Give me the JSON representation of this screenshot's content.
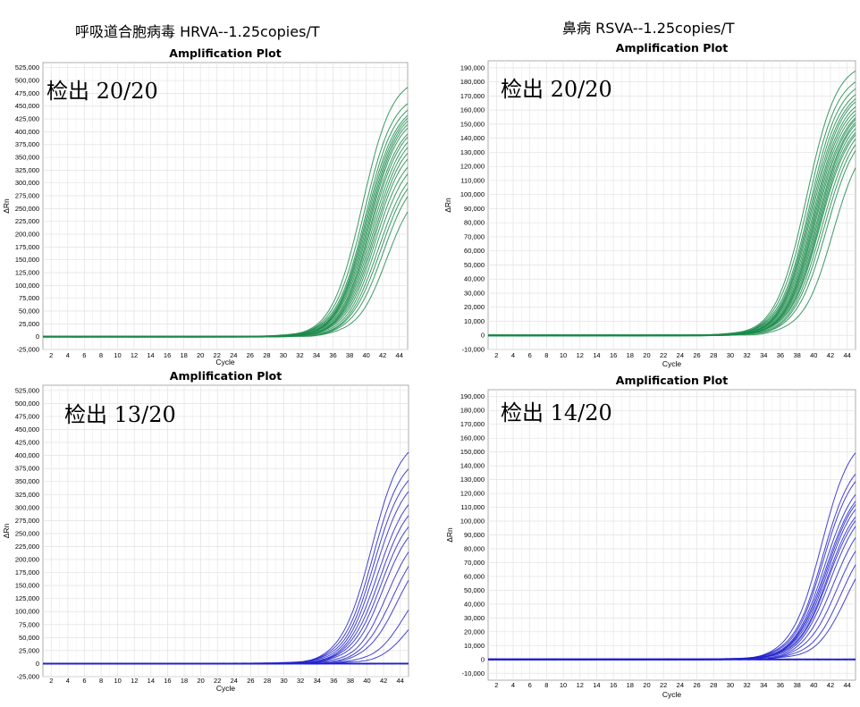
{
  "headings": {
    "left": "呼吸道合胞病毒 HRVA--1.25copies/T",
    "right": "鼻病 RSVA--1.25copies/T"
  },
  "chart_data": [
    {
      "type": "line",
      "title": "Amplification Plot",
      "xlabel": "Cycle",
      "ylabel": "ΔRn",
      "annotation": "检出  20/20",
      "color": "#1a8a4a",
      "xlim": [
        1,
        45
      ],
      "ylim": [
        -25000,
        535000
      ],
      "x_ticks": [
        2,
        4,
        6,
        8,
        10,
        12,
        14,
        16,
        18,
        20,
        22,
        24,
        26,
        28,
        30,
        32,
        34,
        36,
        38,
        40,
        42,
        44
      ],
      "y_ticks": [
        -25000,
        0,
        25000,
        50000,
        75000,
        100000,
        125000,
        150000,
        175000,
        200000,
        225000,
        250000,
        275000,
        300000,
        325000,
        350000,
        375000,
        400000,
        425000,
        450000,
        475000,
        500000,
        525000
      ],
      "y_tick_labels": [
        "-25,000",
        "0",
        "25,000",
        "50,000",
        "75,000",
        "100,000",
        "125,000",
        "150,000",
        "175,000",
        "200,000",
        "225,000",
        "250,000",
        "275,000",
        "300,000",
        "325,000",
        "350,000",
        "375,000",
        "400,000",
        "425,000",
        "450,000",
        "475,000",
        "500,000",
        "525,000"
      ],
      "grid": true,
      "curves": [
        {
          "ct": 38.0,
          "plateau": 510000
        },
        {
          "ct": 38.2,
          "plateau": 480000
        },
        {
          "ct": 38.4,
          "plateau": 470000
        },
        {
          "ct": 38.5,
          "plateau": 460000
        },
        {
          "ct": 38.6,
          "plateau": 455000
        },
        {
          "ct": 38.7,
          "plateau": 450000
        },
        {
          "ct": 38.8,
          "plateau": 445000
        },
        {
          "ct": 38.9,
          "plateau": 440000
        },
        {
          "ct": 39.0,
          "plateau": 430000
        },
        {
          "ct": 39.1,
          "plateau": 425000
        },
        {
          "ct": 39.2,
          "plateau": 415000
        },
        {
          "ct": 39.3,
          "plateau": 405000
        },
        {
          "ct": 39.4,
          "plateau": 395000
        },
        {
          "ct": 39.5,
          "plateau": 385000
        },
        {
          "ct": 39.6,
          "plateau": 370000
        },
        {
          "ct": 39.8,
          "plateau": 360000
        },
        {
          "ct": 40.0,
          "plateau": 345000
        },
        {
          "ct": 40.2,
          "plateau": 335000
        },
        {
          "ct": 40.5,
          "plateau": 325000
        },
        {
          "ct": 41.0,
          "plateau": 305000
        }
      ]
    },
    {
      "type": "line",
      "title": "Amplification Plot",
      "xlabel": "Cycle",
      "ylabel": "ΔRn",
      "annotation": "检出  20/20",
      "color": "#1a8a4a",
      "xlim": [
        1,
        45
      ],
      "ylim": [
        -10000,
        195000
      ],
      "x_ticks": [
        2,
        4,
        6,
        8,
        10,
        12,
        14,
        16,
        18,
        20,
        22,
        24,
        26,
        28,
        30,
        32,
        34,
        36,
        38,
        40,
        42,
        44
      ],
      "y_ticks": [
        -10000,
        0,
        10000,
        20000,
        30000,
        40000,
        50000,
        60000,
        70000,
        80000,
        90000,
        100000,
        110000,
        120000,
        130000,
        140000,
        150000,
        160000,
        170000,
        180000,
        190000
      ],
      "y_tick_labels": [
        "-10,000",
        "0",
        "10,000",
        "20,000",
        "30,000",
        "40,000",
        "50,000",
        "60,000",
        "70,000",
        "80,000",
        "90,000",
        "100,000",
        "110,000",
        "120,000",
        "130,000",
        "140,000",
        "150,000",
        "160,000",
        "170,000",
        "180,000",
        "190,000"
      ],
      "grid": true,
      "curves": [
        {
          "ct": 37.6,
          "plateau": 195000
        },
        {
          "ct": 37.8,
          "plateau": 188000
        },
        {
          "ct": 38.0,
          "plateau": 184000
        },
        {
          "ct": 38.1,
          "plateau": 180000
        },
        {
          "ct": 38.2,
          "plateau": 177000
        },
        {
          "ct": 38.3,
          "plateau": 175000
        },
        {
          "ct": 38.4,
          "plateau": 172000
        },
        {
          "ct": 38.5,
          "plateau": 170000
        },
        {
          "ct": 38.6,
          "plateau": 168000
        },
        {
          "ct": 38.7,
          "plateau": 166000
        },
        {
          "ct": 38.8,
          "plateau": 165000
        },
        {
          "ct": 38.9,
          "plateau": 163000
        },
        {
          "ct": 39.0,
          "plateau": 162000
        },
        {
          "ct": 39.1,
          "plateau": 160000
        },
        {
          "ct": 39.2,
          "plateau": 158000
        },
        {
          "ct": 39.3,
          "plateau": 157000
        },
        {
          "ct": 39.5,
          "plateau": 155000
        },
        {
          "ct": 39.7,
          "plateau": 152000
        },
        {
          "ct": 40.0,
          "plateau": 150000
        },
        {
          "ct": 40.8,
          "plateau": 146000
        }
      ]
    },
    {
      "type": "line",
      "title": "Amplification Plot",
      "xlabel": "Cycle",
      "ylabel": "ΔRn",
      "annotation": "检出  13/20",
      "color": "#2222cc",
      "xlim": [
        1,
        45
      ],
      "ylim": [
        -25000,
        535000
      ],
      "x_ticks": [
        2,
        4,
        6,
        8,
        10,
        12,
        14,
        16,
        18,
        20,
        22,
        24,
        26,
        28,
        30,
        32,
        34,
        36,
        38,
        40,
        42,
        44
      ],
      "y_ticks": [
        -25000,
        0,
        25000,
        50000,
        75000,
        100000,
        125000,
        150000,
        175000,
        200000,
        225000,
        250000,
        275000,
        300000,
        325000,
        350000,
        375000,
        400000,
        425000,
        450000,
        475000,
        500000,
        525000
      ],
      "y_tick_labels": [
        "-25,000",
        "0",
        "25,000",
        "50,000",
        "75,000",
        "100,000",
        "125,000",
        "150,000",
        "175,000",
        "200,000",
        "225,000",
        "250,000",
        "275,000",
        "300,000",
        "325,000",
        "350,000",
        "375,000",
        "400,000",
        "425,000",
        "450,000",
        "475,000",
        "500,000",
        "525,000"
      ],
      "grid": true,
      "curves": [
        {
          "ct": 39.0,
          "plateau": 440000
        },
        {
          "ct": 39.2,
          "plateau": 410000
        },
        {
          "ct": 39.4,
          "plateau": 390000
        },
        {
          "ct": 39.6,
          "plateau": 370000
        },
        {
          "ct": 39.8,
          "plateau": 345000
        },
        {
          "ct": 40.0,
          "plateau": 325000
        },
        {
          "ct": 40.2,
          "plateau": 305000
        },
        {
          "ct": 40.5,
          "plateau": 290000
        },
        {
          "ct": 41.0,
          "plateau": 270000
        },
        {
          "ct": 41.5,
          "plateau": 250000
        },
        {
          "ct": 42.0,
          "plateau": 230000
        },
        {
          "ct": 43.0,
          "plateau": 180000
        },
        {
          "ct": 44.0,
          "plateau": 150000
        },
        {
          "ct": 46.0,
          "plateau": 0
        },
        {
          "ct": 46.0,
          "plateau": 0
        },
        {
          "ct": 46.0,
          "plateau": 0
        },
        {
          "ct": 46.0,
          "plateau": 0
        },
        {
          "ct": 46.0,
          "plateau": 0
        },
        {
          "ct": 46.0,
          "plateau": 0
        },
        {
          "ct": 46.0,
          "plateau": 0
        }
      ]
    },
    {
      "type": "line",
      "title": "Amplification Plot",
      "xlabel": "Cycle",
      "ylabel": "ΔRn",
      "annotation": "检出  14/20",
      "color": "#2222cc",
      "xlim": [
        1,
        45
      ],
      "ylim": [
        -15000,
        195000
      ],
      "x_ticks": [
        2,
        4,
        6,
        8,
        10,
        12,
        14,
        16,
        18,
        20,
        22,
        24,
        26,
        28,
        30,
        32,
        34,
        36,
        38,
        40,
        42,
        44
      ],
      "y_ticks": [
        -10000,
        0,
        10000,
        20000,
        30000,
        40000,
        50000,
        60000,
        70000,
        80000,
        90000,
        100000,
        110000,
        120000,
        130000,
        140000,
        150000,
        160000,
        170000,
        180000,
        190000
      ],
      "y_tick_labels": [
        "-10,000",
        "0",
        "10,000",
        "20,000",
        "30,000",
        "40,000",
        "50,000",
        "60,000",
        "70,000",
        "80,000",
        "90,000",
        "100,000",
        "110,000",
        "120,000",
        "130,000",
        "140,000",
        "150,000",
        "160,000",
        "170,000",
        "180,000",
        "190,000"
      ],
      "grid": true,
      "curves": [
        {
          "ct": 39.4,
          "plateau": 165000
        },
        {
          "ct": 39.6,
          "plateau": 150000
        },
        {
          "ct": 39.7,
          "plateau": 145000
        },
        {
          "ct": 39.8,
          "plateau": 135000
        },
        {
          "ct": 39.9,
          "plateau": 130000
        },
        {
          "ct": 40.0,
          "plateau": 128000
        },
        {
          "ct": 40.1,
          "plateau": 125000
        },
        {
          "ct": 40.2,
          "plateau": 120000
        },
        {
          "ct": 40.3,
          "plateau": 118000
        },
        {
          "ct": 40.5,
          "plateau": 115000
        },
        {
          "ct": 40.8,
          "plateau": 108000
        },
        {
          "ct": 41.2,
          "plateau": 100000
        },
        {
          "ct": 41.8,
          "plateau": 95000
        },
        {
          "ct": 42.5,
          "plateau": 92000
        },
        {
          "ct": 50,
          "plateau": 0
        },
        {
          "ct": 50,
          "plateau": 0
        },
        {
          "ct": 50,
          "plateau": 0
        },
        {
          "ct": 50,
          "plateau": 0
        },
        {
          "ct": 50,
          "plateau": 0
        },
        {
          "ct": 50,
          "plateau": 0
        }
      ]
    }
  ]
}
